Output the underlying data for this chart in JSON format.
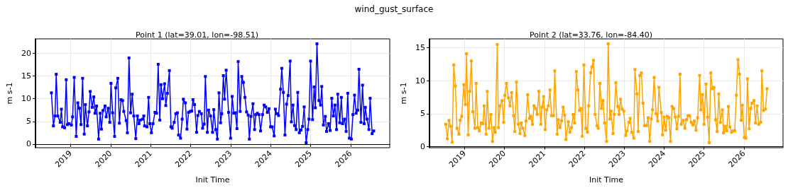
{
  "chart_data": [
    {
      "type": "line",
      "title": "Point 1 (lat=39.01, lon=-98.51)",
      "xlabel": "Init Time",
      "ylabel": "m s-1",
      "annotations": [
        "wind_gust_surface"
      ],
      "color": "#0000ff",
      "marker": "square",
      "grid": true,
      "xlim": [
        2018.12,
        2026.98
      ],
      "xticks": [
        2019,
        2020,
        2021,
        2022,
        2023,
        2024,
        2025,
        2026
      ],
      "ylim": [
        -0.8,
        23.2
      ],
      "yticks": [
        0,
        5,
        10,
        15,
        20
      ],
      "x": [
        2018.52,
        2018.57,
        2018.61,
        2018.64,
        2018.68,
        2018.74,
        2018.77,
        2018.8,
        2018.85,
        2018.89,
        2018.92,
        2018.96,
        2019.02,
        2019.05,
        2019.09,
        2019.14,
        2019.18,
        2019.22,
        2019.26,
        2019.3,
        2019.34,
        2019.37,
        2019.42,
        2019.46,
        2019.49,
        2019.54,
        2019.58,
        2019.61,
        2019.65,
        2019.7,
        2019.74,
        2019.77,
        2019.81,
        2019.86,
        2019.89,
        2019.94,
        2019.98,
        2020.01,
        2020.05,
        2020.1,
        2020.13,
        2020.18,
        2020.22,
        2020.26,
        2020.3,
        2020.33,
        2020.39,
        2020.42,
        2020.46,
        2020.5,
        2020.54,
        2020.58,
        2020.63,
        2020.67,
        2020.71,
        2020.74,
        2020.8,
        2020.83,
        2020.85,
        2020.91,
        2020.95,
        2020.98,
        2021.02,
        2021.06,
        2021.11,
        2021.15,
        2021.19,
        2021.23,
        2021.26,
        2021.3,
        2021.35,
        2021.38,
        2021.42,
        2021.47,
        2021.51,
        2021.54,
        2021.59,
        2021.63,
        2021.67,
        2021.7,
        2021.75,
        2021.79,
        2021.82,
        2021.87,
        2021.91,
        2021.95,
        2021.99,
        2022.03,
        2022.06,
        2022.1,
        2022.15,
        2022.18,
        2022.22,
        2022.27,
        2022.3,
        2022.34,
        2022.37,
        2022.42,
        2022.45,
        2022.5,
        2022.55,
        2022.58,
        2022.63,
        2022.67,
        2022.71,
        2022.75,
        2022.78,
        2022.82,
        2022.85,
        2022.89,
        2022.95,
        2023.0,
        2023.04,
        2023.08,
        2023.12,
        2023.16,
        2023.19,
        2023.24,
        2023.28,
        2023.32,
        2023.36,
        2023.4,
        2023.44,
        2023.47,
        2023.51,
        2023.56,
        2023.6,
        2023.63,
        2023.67,
        2023.71,
        2023.75,
        2023.8,
        2023.84,
        2023.88,
        2023.92,
        2023.96,
        2024.0,
        2024.04,
        2024.09,
        2024.12,
        2024.16,
        2024.2,
        2024.25,
        2024.28,
        2024.32,
        2024.36,
        2024.4,
        2024.44,
        2024.49,
        2024.52,
        2024.56,
        2024.6,
        2024.64,
        2024.68,
        2024.72,
        2024.76,
        2024.8,
        2024.84,
        2024.89,
        2024.93,
        2024.96,
        2025.0,
        2025.05,
        2025.09,
        2025.12,
        2025.16,
        2025.21,
        2025.25,
        2025.28,
        2025.32,
        2025.37,
        2025.4,
        2025.45,
        2025.49,
        2025.53,
        2025.57,
        2025.61,
        2025.65,
        2025.68,
        2025.73,
        2025.77,
        2025.8,
        2025.85,
        2025.89,
        2025.93,
        2025.97,
        2026.02,
        2026.06,
        2026.1,
        2026.14,
        2026.18,
        2026.21,
        2026.26,
        2026.3,
        2026.34,
        2026.37,
        2026.41,
        2026.46,
        2026.49,
        2026.54,
        2026.58
      ],
      "values": [
        11.3,
        4.0,
        6.2,
        15.4,
        6.2,
        4.8,
        7.7,
        3.8,
        3.6,
        14.2,
        4.3,
        4.5,
        4.2,
        6.0,
        14.7,
        1.7,
        9.1,
        7.9,
        4.3,
        14.5,
        2.2,
        8.7,
        4.0,
        7.1,
        11.6,
        8.1,
        10.4,
        6.8,
        8.4,
        1.1,
        6.8,
        3.3,
        7.4,
        8.4,
        6.0,
        7.9,
        4.8,
        13.4,
        6.9,
        1.7,
        12.4,
        14.5,
        4.6,
        9.8,
        9.6,
        7.2,
        5.2,
        2.5,
        19.0,
        6.9,
        11.0,
        6.2,
        1.2,
        6.2,
        4.5,
        5.3,
        5.5,
        6.2,
        4.0,
        3.8,
        10.3,
        4.5,
        2.5,
        4.5,
        7.0,
        6.8,
        17.6,
        5.3,
        13.1,
        10.0,
        13.3,
        8.5,
        11.2,
        16.2,
        3.8,
        3.5,
        4.8,
        6.7,
        6.9,
        2.0,
        1.3,
        5.5,
        9.9,
        9.1,
        3.3,
        7.0,
        7.2,
        7.3,
        9.8,
        8.7,
        2.6,
        6.3,
        7.2,
        6.7,
        3.5,
        4.4,
        14.9,
        2.6,
        7.5,
        6.2,
        2.6,
        7.6,
        3.2,
        1.1,
        11.3,
        4.7,
        6.7,
        15.1,
        9.9,
        16.3,
        7.0,
        1.3,
        10.5,
        6.8,
        6.9,
        3.4,
        18.2,
        7.2,
        14.9,
        13.6,
        10.3,
        7.1,
        6.4,
        1.1,
        6.1,
        8.9,
        3.2,
        6.5,
        6.8,
        6.5,
        2.9,
        6.5,
        8.6,
        8.2,
        7.0,
        7.8,
        3.8,
        3.8,
        1.8,
        7.7,
        6.7,
        6.3,
        12.1,
        16.7,
        11.4,
        2.0,
        8.8,
        10.7,
        18.3,
        4.9,
        8.6,
        4.1,
        3.2,
        11.4,
        2.5,
        3.1,
        3.9,
        8.2,
        0.3,
        3.2,
        5.5,
        18.3,
        5.4,
        12.6,
        8.0,
        22.1,
        9.6,
        8.6,
        12.7,
        4.2,
        6.1,
        2.8,
        4.5,
        3.0,
        10.1,
        6.2,
        8.6,
        3.2,
        11.0,
        4.7,
        10.3,
        4.5,
        5.5,
        2.8,
        11.2,
        1.3,
        1.1,
        6.5,
        10.8,
        6.8,
        7.5,
        16.5,
        4.8,
        13.0,
        4.5,
        8.1,
        5.5,
        3.2,
        10.1,
        2.3,
        2.9
      ]
    },
    {
      "type": "line",
      "title": "Point 2 (lat=33.76, lon=-84.40)",
      "xlabel": "Init Time",
      "ylabel": "m s-1",
      "color": "#ffa500",
      "marker": "square",
      "grid": true,
      "xlim": [
        2018.12,
        2026.98
      ],
      "xticks": [
        2019,
        2020,
        2021,
        2022,
        2023,
        2024,
        2025,
        2026
      ],
      "ylim": [
        -0.15,
        16.35
      ],
      "yticks": [
        0,
        5,
        10,
        15
      ],
      "x": [
        2018.53,
        2018.57,
        2018.61,
        2018.65,
        2018.69,
        2018.73,
        2018.77,
        2018.81,
        2018.86,
        2018.89,
        2018.93,
        2018.98,
        2019.02,
        2019.05,
        2019.09,
        2019.13,
        2019.17,
        2019.21,
        2019.26,
        2019.29,
        2019.33,
        2019.37,
        2019.42,
        2019.46,
        2019.49,
        2019.54,
        2019.57,
        2019.61,
        2019.66,
        2019.7,
        2019.74,
        2019.77,
        2019.82,
        2019.85,
        2019.89,
        2019.94,
        2019.98,
        2020.01,
        2020.05,
        2020.1,
        2020.14,
        2020.18,
        2020.23,
        2020.26,
        2020.3,
        2020.35,
        2020.39,
        2020.42,
        2020.46,
        2020.51,
        2020.54,
        2020.58,
        2020.63,
        2020.66,
        2020.7,
        2020.74,
        2020.78,
        2020.82,
        2020.86,
        2020.91,
        2020.94,
        2020.98,
        2021.02,
        2021.06,
        2021.1,
        2021.14,
        2021.18,
        2021.23,
        2021.26,
        2021.32,
        2021.35,
        2021.39,
        2021.43,
        2021.47,
        2021.51,
        2021.54,
        2021.6,
        2021.64,
        2021.68,
        2021.72,
        2021.76,
        2021.8,
        2021.84,
        2021.88,
        2021.92,
        2021.95,
        2021.99,
        2022.04,
        2022.08,
        2022.11,
        2022.16,
        2022.19,
        2022.23,
        2022.27,
        2022.32,
        2022.35,
        2022.39,
        2022.43,
        2022.47,
        2022.51,
        2022.56,
        2022.6,
        2022.64,
        2022.67,
        2022.72,
        2022.75,
        2022.79,
        2022.84,
        2022.87,
        2022.91,
        2022.95,
        2022.99,
        2023.04,
        2023.07,
        2023.12,
        2023.15,
        2023.19,
        2023.24,
        2023.27,
        2023.32,
        2023.35,
        2023.39,
        2023.43,
        2023.47,
        2023.51,
        2023.56,
        2023.6,
        2023.64,
        2023.68,
        2023.71,
        2023.75,
        2023.8,
        2023.84,
        2023.87,
        2023.93,
        2023.96,
        2024.0,
        2024.04,
        2024.08,
        2024.12,
        2024.16,
        2024.2,
        2024.24,
        2024.28,
        2024.32,
        2024.36,
        2024.4,
        2024.43,
        2024.48,
        2024.52,
        2024.56,
        2024.6,
        2024.64,
        2024.68,
        2024.72,
        2024.76,
        2024.8,
        2024.84,
        2024.89,
        2024.92,
        2024.96,
        2025.0,
        2025.05,
        2025.09,
        2025.13,
        2025.17,
        2025.21,
        2025.25,
        2025.29,
        2025.33,
        2025.37,
        2025.41,
        2025.46,
        2025.49,
        2025.53,
        2025.57,
        2025.61,
        2025.65,
        2025.69,
        2025.73,
        2025.77,
        2025.81,
        2025.85,
        2025.89,
        2025.93,
        2025.96,
        2026.01,
        2026.05,
        2026.09,
        2026.13,
        2026.17,
        2026.2,
        2026.25,
        2026.29,
        2026.33,
        2026.37,
        2026.42,
        2026.45,
        2026.49,
        2026.54,
        2026.58
      ],
      "values": [
        3.4,
        1.2,
        4.0,
        3.1,
        0.7,
        12.4,
        9.2,
        2.8,
        1.9,
        4.0,
        4.6,
        9.4,
        6.4,
        14.1,
        1.8,
        8.4,
        13.0,
        5.3,
        2.8,
        9.6,
        2.9,
        2.4,
        3.6,
        3.5,
        6.2,
        1.9,
        8.4,
        2.8,
        4.9,
        0.8,
        2.9,
        2.2,
        15.5,
        2.9,
        6.2,
        7.0,
        3.7,
        7.8,
        9.6,
        7.4,
        6.2,
        8.2,
        4.7,
        2.3,
        9.8,
        3.4,
        2.0,
        3.6,
        2.8,
        1.7,
        3.9,
        7.9,
        4.3,
        4.6,
        3.4,
        6.2,
        5.8,
        4.9,
        8.4,
        3.4,
        6.0,
        7.6,
        2.6,
        5.6,
        6.2,
        8.6,
        4.7,
        4.7,
        11.5,
        1.9,
        4.1,
        2.9,
        3.9,
        6.0,
        4.8,
        1.1,
        3.8,
        2.2,
        2.9,
        4.9,
        3.6,
        11.4,
        8.6,
        5.5,
        5.8,
        1.6,
        12.4,
        2.8,
        2.2,
        6.2,
        11.2,
        12.1,
        13.1,
        4.9,
        3.2,
        2.8,
        9.6,
        5.8,
        7.0,
        3.6,
        0.8,
        15.6,
        4.2,
        5.4,
        2.0,
        4.9,
        9.7,
        6.1,
        4.9,
        7.2,
        5.7,
        5.4,
        1.7,
        2.4,
        3.7,
        4.3,
        2.2,
        1.3,
        11.7,
        8.0,
        2.3,
        10.8,
        11.2,
        6.6,
        3.2,
        3.2,
        4.4,
        0.8,
        4.2,
        5.6,
        10.5,
        5.0,
        3.9,
        9.0,
        5.2,
        1.8,
        4.5,
        2.5,
        4.6,
        4.4,
        0.8,
        6.1,
        5.8,
        4.5,
        2.7,
        4.6,
        11.0,
        3.4,
        4.0,
        2.8,
        4.1,
        4.7,
        4.7,
        3.7,
        3.3,
        3.9,
        2.5,
        4.4,
        10.8,
        5.6,
        7.9,
        3.4,
        9.5,
        4.5,
        0.6,
        11.2,
        8.8,
        9.0,
        4.1,
        2.3,
        8.0,
        3.7,
        5.6,
        2.1,
        3.1,
        2.4,
        6.1,
        3.0,
        2.2,
        2.4,
        2.4,
        7.8,
        13.2,
        11.0,
        4.0,
        6.3,
        1.4,
        1.3,
        10.3,
        2.7,
        5.8,
        6.6,
        7.0,
        3.6,
        6.2,
        3.4,
        3.7,
        11.5,
        5.5,
        5.7,
        8.8
      ]
    }
  ]
}
